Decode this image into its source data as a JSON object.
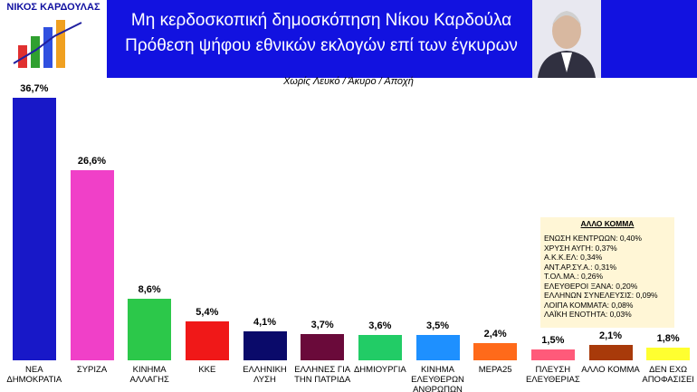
{
  "header": {
    "logo_text": "ΝΙΚΟΣ ΚΑΡΔΟΥΛΑΣ",
    "title_line1": "Μη κερδοσκοπική δημοσκόπηση  Νίκου  Καρδούλα",
    "title_line2": "Πρόθεση ψήφου εθνικών εκλογών επί των έγκυρων"
  },
  "chart_data": {
    "type": "bar",
    "subtitle": "Χωρίς Λευκό / Άκυρο / Αποχή",
    "categories": [
      "ΝΕΑ\nΔΗΜΟΚΡΑΤΙΑ",
      "ΣΥΡΙΖΑ",
      "ΚΙΝΗΜΑ\nΑΛΛΑΓΗΣ",
      "ΚΚΕ",
      "ΕΛΛΗΝΙΚΗ\nΛΥΣΗ",
      "ΕΛΛΗΝΕΣ ΓΙΑ\nΤΗΝ ΠΑΤΡΙΔΑ",
      "ΔΗΜΙΟΥΡΓΙΑ",
      "ΚΙΝΗΜΑ\nΕΛΕΥΘΕΡΩΝ\nΑΝΘΡΩΠΩΝ",
      "ΜΕΡΑ25",
      "ΠΛΕΥΣΗ\nΕΛΕΥΘΕΡΙΑΣ",
      "ΑΛΛΟ ΚΟΜΜΑ",
      "ΔΕΝ ΕΧΩ\nΑΠΟΦΑΣΙΣΕΙ"
    ],
    "values": [
      36.7,
      26.6,
      8.6,
      5.4,
      4.1,
      3.7,
      3.6,
      3.5,
      2.4,
      1.5,
      2.1,
      1.8
    ],
    "value_labels": [
      "36,7%",
      "26,6%",
      "8,6%",
      "5,4%",
      "4,1%",
      "3,7%",
      "3,6%",
      "3,5%",
      "2,4%",
      "1,5%",
      "2,1%",
      "1,8%"
    ],
    "colors": [
      "#1818c8",
      "#f040c8",
      "#2cc84a",
      "#f01818",
      "#0a0a6a",
      "#6a0a3a",
      "#22cc66",
      "#1e90ff",
      "#ff6a1a",
      "#ff5a7a",
      "#a83a0a",
      "#ffff30"
    ],
    "ylim": [
      0,
      38
    ],
    "inset": {
      "title": "ΑΛΛΟ ΚΟΜΜΑ",
      "items": [
        "ΕΝΩΣΗ ΚΕΝΤΡΩΩΝ: 0,40%",
        "ΧΡΥΣΗ ΑΥΓΗ: 0,37%",
        "Α.Κ.Κ.ΕΛ: 0,34%",
        "ΑΝΤ.ΑΡ.ΣΥ.Α.: 0,31%",
        "Τ.ΟΛ.ΜΑ.: 0,26%",
        "ΕΛΕΥΘΕΡΟΙ ΞΑΝΑ: 0,20%",
        "ΕΛΛΗΝΩΝ ΣΥΝΕΛΕΥΣΙΣ: 0,09%",
        "ΛΟΙΠΑ ΚΟΜΜΑΤΑ: 0,08%",
        "ΛΑΪΚΗ ΕΝΟΤΗΤΑ: 0,03%"
      ]
    }
  }
}
